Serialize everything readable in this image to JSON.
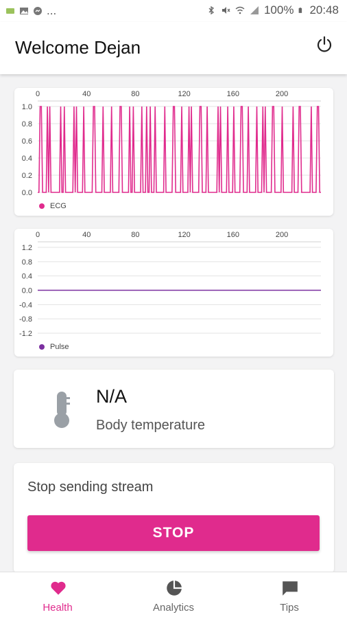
{
  "status_bar": {
    "battery": "100%",
    "time": "20:48",
    "dots": "..."
  },
  "app_bar": {
    "title": "Welcome Dejan"
  },
  "ecg_chart": {
    "x_ticks": [
      "0",
      "40",
      "80",
      "120",
      "160",
      "200"
    ],
    "y_ticks": [
      "1.0",
      "0.8",
      "0.6",
      "0.4",
      "0.2",
      "0.0"
    ],
    "legend": "ECG",
    "color": "#e02b8d"
  },
  "pulse_chart": {
    "x_ticks": [
      "0",
      "40",
      "80",
      "120",
      "160",
      "200"
    ],
    "y_ticks": [
      "1.2",
      "0.8",
      "0.4",
      "0.0",
      "-0.4",
      "-0.8",
      "-1.2"
    ],
    "legend": "Pulse",
    "color": "#7b2fa0"
  },
  "chart_data": [
    {
      "type": "line",
      "series": [
        {
          "name": "ECG",
          "values": [
            0,
            0,
            1,
            1,
            0,
            0,
            0,
            0,
            1,
            0,
            1,
            0,
            0,
            0,
            0,
            0,
            0,
            0,
            0,
            1,
            0,
            0,
            1,
            0,
            0,
            0,
            0,
            0,
            0,
            0,
            1,
            0,
            1,
            0,
            0,
            0,
            0,
            0,
            1,
            0,
            0,
            0,
            0,
            0,
            0,
            0,
            1,
            1,
            0,
            0,
            0,
            0,
            0,
            0,
            1,
            0,
            0,
            0,
            0,
            0,
            0,
            1,
            0,
            0,
            0,
            0,
            0,
            0,
            1,
            1,
            0,
            0,
            0,
            0,
            0,
            0,
            1,
            0,
            0,
            1,
            0,
            0,
            0,
            0,
            0,
            0,
            1,
            0,
            0,
            0,
            1,
            0,
            0,
            1,
            0,
            0,
            0,
            1,
            0,
            0,
            0,
            0,
            0,
            0,
            0,
            1,
            0,
            0,
            0,
            0,
            0,
            0,
            1,
            1,
            0,
            0,
            0,
            0,
            0,
            1,
            0,
            0,
            0,
            0,
            0,
            1,
            0,
            1,
            0,
            0,
            0,
            0,
            0,
            0,
            1,
            1,
            0,
            0,
            0,
            0,
            1,
            0,
            0,
            0,
            0,
            0,
            0,
            0,
            0,
            1,
            0,
            1,
            0,
            0,
            0,
            0,
            0,
            1,
            0,
            0,
            0,
            0,
            1,
            0,
            0,
            0,
            0,
            0,
            1,
            1,
            0,
            0,
            0,
            0,
            1,
            0,
            0,
            0,
            0,
            0,
            0,
            1,
            0,
            0,
            0,
            0,
            1,
            0,
            1,
            0,
            0,
            0,
            0,
            0,
            1,
            1,
            0,
            0,
            0,
            0,
            0,
            0,
            1,
            0,
            0,
            0,
            0,
            0,
            0,
            0,
            0,
            1,
            0,
            0,
            0,
            0,
            1,
            1,
            0,
            0,
            0,
            0,
            0,
            0,
            0,
            0,
            1,
            0,
            0,
            0,
            0,
            1,
            1,
            0,
            0
          ]
        }
      ],
      "xlim": [
        0,
        232
      ],
      "ylim": [
        0,
        1.0
      ]
    },
    {
      "type": "line",
      "series": [
        {
          "name": "Pulse",
          "values": [
            0,
            0
          ]
        }
      ],
      "x": [
        0,
        232
      ],
      "xlim": [
        0,
        232
      ],
      "ylim": [
        -1.2,
        1.2
      ]
    }
  ],
  "temperature": {
    "value": "N/A",
    "label": "Body temperature"
  },
  "stream": {
    "label": "Stop sending stream",
    "button": "STOP"
  },
  "bottom_nav": {
    "items": [
      {
        "label": "Health",
        "icon": "heart-icon",
        "active": true
      },
      {
        "label": "Analytics",
        "icon": "pie-chart-icon",
        "active": false
      },
      {
        "label": "Tips",
        "icon": "chat-bubble-icon",
        "active": false
      }
    ],
    "active_color": "#e02b8d"
  }
}
